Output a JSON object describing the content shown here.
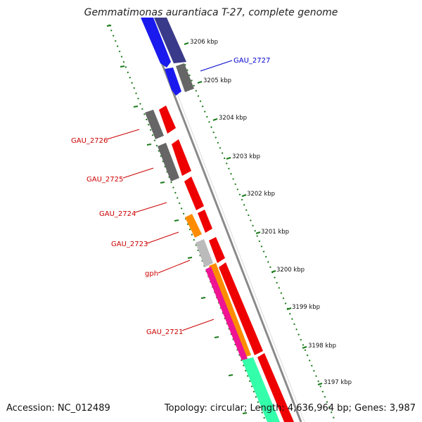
{
  "title": "Gemmatimonas aurantiaca T-27, complete genome",
  "footer": {
    "accession": "Accession: NC_012489",
    "summary": "Topology: circular; Length: 4,636,964 bp; Genes: 3,987"
  },
  "ruler": {
    "labels": [
      "3206 kbp",
      "3205 kbp",
      "3204 kbp",
      "3203 kbp",
      "3202 kbp",
      "3201 kbp",
      "3200 kbp",
      "3199 kbp",
      "3198 kbp",
      "3197 kbp"
    ]
  },
  "gene_labels": [
    {
      "text": "GAU_2727",
      "color": "#0000cc"
    },
    {
      "text": "GAU_2726",
      "color": "#cc0000"
    },
    {
      "text": "GAU_2725",
      "color": "#cc0000"
    },
    {
      "text": "GAU_2724",
      "color": "#cc0000"
    },
    {
      "text": "GAU_2723",
      "color": "#cc0000"
    },
    {
      "text": "gph",
      "color": "#cc0000"
    },
    {
      "text": "GAU_2721",
      "color": "#cc0000"
    }
  ],
  "colors": {
    "backbone": "#8a8a8a",
    "ruler": "#1a7a1a",
    "cds_forward": "#1a1aee",
    "cds_reverse": "#ee0000",
    "pseudo": "#555555",
    "rna": "#ff8c00",
    "light": "#bbbbbb",
    "pink": "#ee1493",
    "teal": "#33ffaa",
    "purple": "#3a3a8a"
  }
}
